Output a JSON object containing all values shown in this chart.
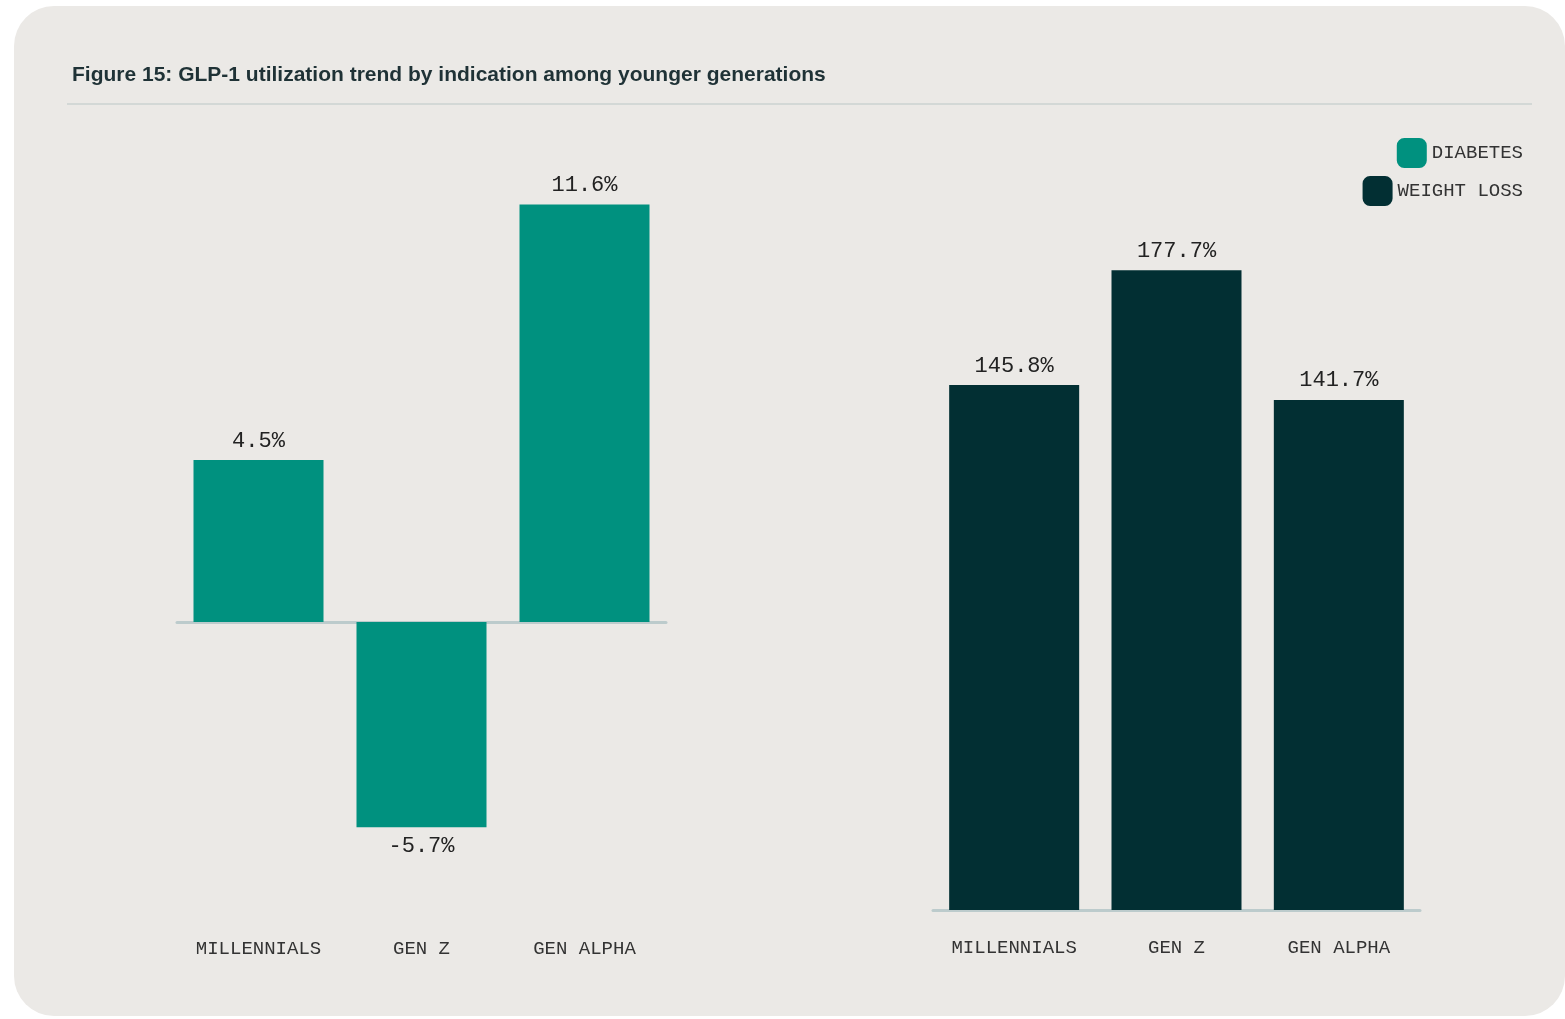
{
  "chart_data": [
    {
      "type": "bar",
      "title": "Figure 15: GLP-1 utilization trend by indication among younger generations",
      "categories": [
        "MILLENNIALS",
        "GEN Z",
        "GEN ALPHA"
      ],
      "series": [
        {
          "name": "DIABETES",
          "color": "#00917f",
          "values": [
            4.5,
            -5.7,
            11.6
          ],
          "value_labels": [
            "4.5%",
            "-5.7%",
            "11.6%"
          ]
        }
      ],
      "legend": "top right",
      "grid": false
    },
    {
      "type": "bar",
      "categories": [
        "MILLENNIALS",
        "GEN Z",
        "GEN ALPHA"
      ],
      "series": [
        {
          "name": "WEIGHT LOSS",
          "color": "#022f33",
          "values": [
            145.8,
            177.7,
            141.7
          ],
          "value_labels": [
            "145.8%",
            "177.7%",
            "141.7%"
          ]
        }
      ],
      "legend": "top right",
      "grid": false
    }
  ]
}
